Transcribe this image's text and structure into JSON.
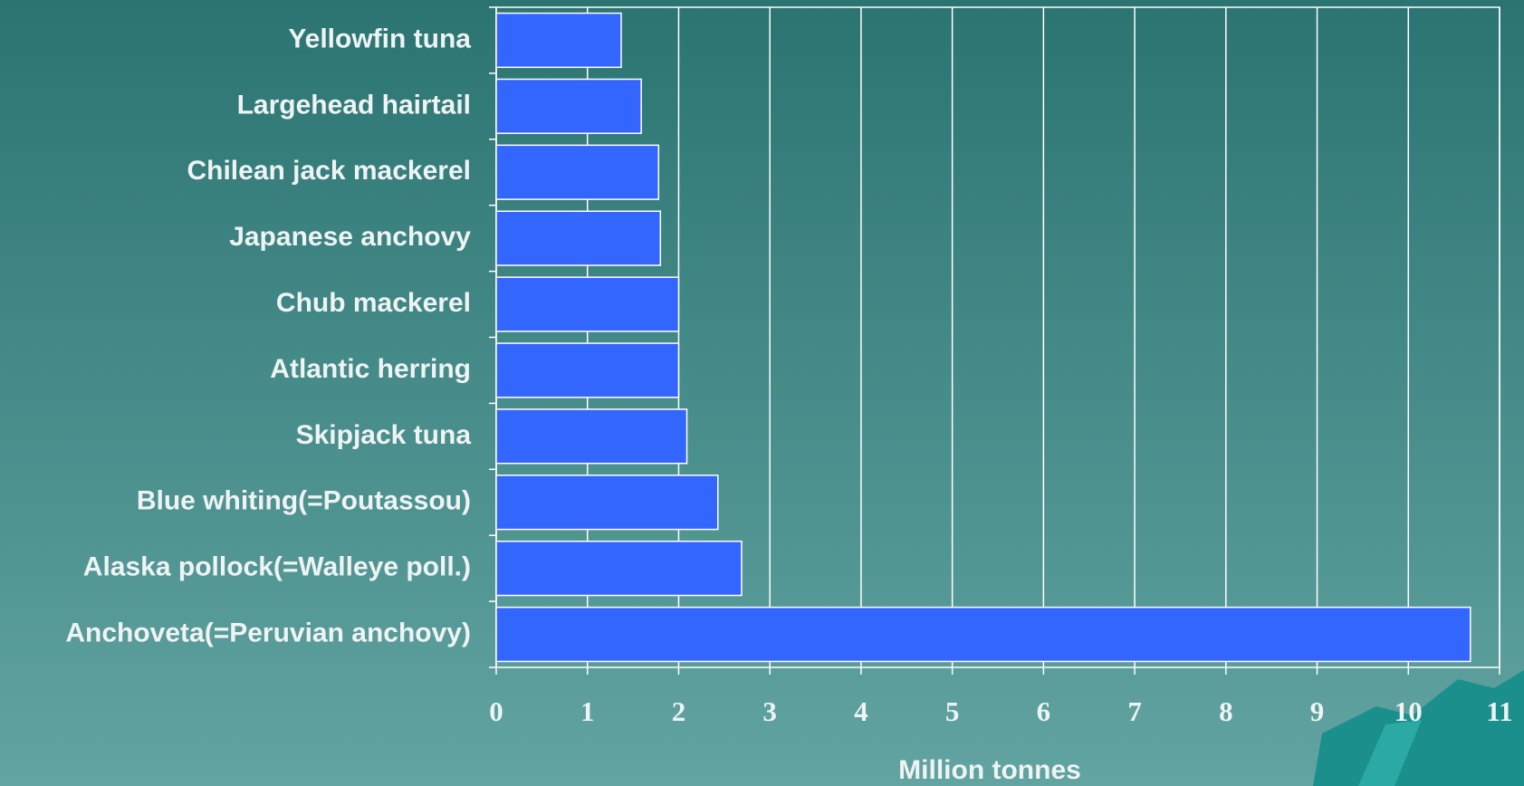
{
  "chart_data": {
    "type": "hbar",
    "categories": [
      "Yellowfin tuna",
      "Largehead hairtail",
      "Chilean jack mackerel",
      "Japanese anchovy",
      "Chub mackerel",
      "Atlantic herring",
      "Skipjack tuna",
      "Blue whiting(=Poutassou)",
      "Alaska pollock(=Walleye poll.)",
      "Anchoveta(=Peruvian anchovy)"
    ],
    "values": [
      1.37,
      1.59,
      1.78,
      1.8,
      2.0,
      2.0,
      2.09,
      2.43,
      2.69,
      10.68
    ],
    "color": "#3366ff",
    "x_label": "Million tonnes",
    "xlim": [
      0,
      11
    ],
    "xticks": [
      0,
      1,
      2,
      3,
      4,
      5,
      6,
      7,
      8,
      9,
      10,
      11
    ],
    "grid": true
  }
}
